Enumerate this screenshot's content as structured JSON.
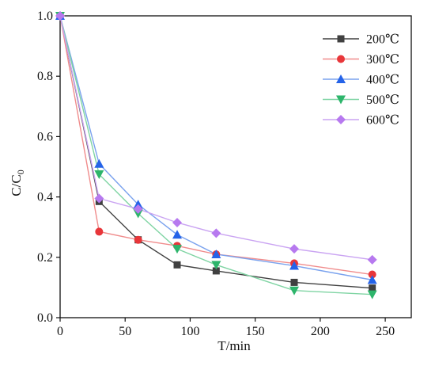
{
  "chart_data": {
    "type": "line",
    "xlabel": "T/min",
    "ylabel_main": "C/C",
    "ylabel_sub": "0",
    "xlim": [
      0,
      270
    ],
    "ylim": [
      0,
      1.0
    ],
    "xticks": [
      0,
      50,
      100,
      150,
      200,
      250
    ],
    "xtick_labels": [
      "0",
      "50",
      "100",
      "150",
      "200",
      "250"
    ],
    "yticks": [
      0,
      0.2,
      0.4,
      0.6,
      0.8,
      1.0
    ],
    "ytick_labels": [
      "0.0",
      "0.2",
      "0.4",
      "0.6",
      "0.8",
      "1.0"
    ],
    "grid": false,
    "legend_position": "top-right",
    "x": [
      0,
      30,
      60,
      90,
      120,
      180,
      240
    ],
    "series": [
      {
        "name": "200℃",
        "marker": "square",
        "color": "#404040",
        "line_color": "#404040",
        "values": [
          1.0,
          0.385,
          0.258,
          0.175,
          0.155,
          0.117,
          0.098
        ]
      },
      {
        "name": "300℃",
        "marker": "circle",
        "color": "#e8363a",
        "line_color": "#f08c8c",
        "values": [
          1.0,
          0.285,
          0.258,
          0.238,
          0.21,
          0.18,
          0.143
        ]
      },
      {
        "name": "400℃",
        "marker": "triangle-up",
        "color": "#2563e8",
        "line_color": "#7aa2ee",
        "values": [
          1.0,
          0.51,
          0.375,
          0.275,
          0.21,
          0.172,
          0.125
        ]
      },
      {
        "name": "500℃",
        "marker": "triangle-down",
        "color": "#2db56b",
        "line_color": "#7fd4a3",
        "values": [
          1.0,
          0.475,
          0.345,
          0.228,
          0.175,
          0.09,
          0.077
        ]
      },
      {
        "name": "600℃",
        "marker": "diamond",
        "color": "#b779ef",
        "line_color": "#caa4f2",
        "values": [
          1.0,
          0.395,
          0.36,
          0.315,
          0.28,
          0.228,
          0.192
        ]
      }
    ]
  }
}
